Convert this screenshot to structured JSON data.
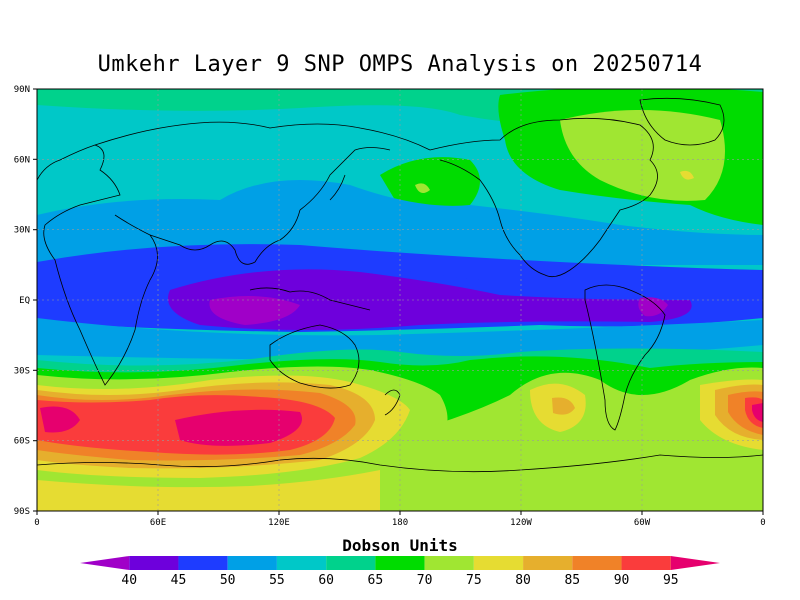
{
  "title": "Umkehr Layer 9 SNP OMPS Analysis on 20250714",
  "units_label": "Dobson Units",
  "lat_ticks": [
    "90N",
    "60N",
    "30N",
    "EQ",
    "30S",
    "60S",
    "90S"
  ],
  "lon_ticks": [
    "0",
    "60E",
    "120E",
    "180",
    "120W",
    "60W",
    "0"
  ],
  "colorbar": {
    "labels": [
      "40",
      "45",
      "50",
      "55",
      "60",
      "65",
      "70",
      "75",
      "80",
      "85",
      "90",
      "95"
    ],
    "colors": [
      "#a000c8",
      "#6e00dc",
      "#1e3cff",
      "#00a0e6",
      "#00c8c8",
      "#00d28c",
      "#00dc00",
      "#a0e632",
      "#e6dc32",
      "#e6af2d",
      "#f08228",
      "#fa3c3c",
      "#e6006e"
    ]
  }
}
